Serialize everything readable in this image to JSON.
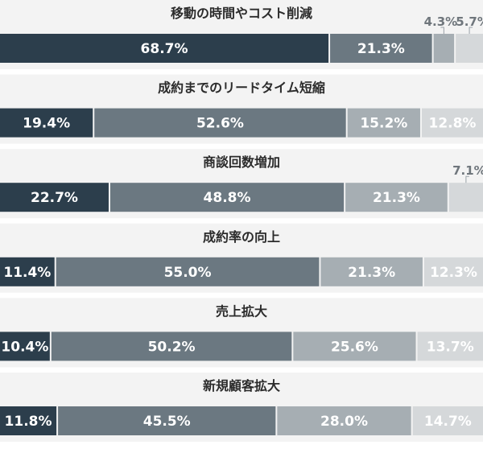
{
  "chart_data": {
    "type": "bar",
    "orientation": "horizontal-stacked-100",
    "colors": [
      "#2c3e4c",
      "#6b7881",
      "#a6aeb3",
      "#d5d8da"
    ],
    "charts": [
      {
        "title": "移動の時間やコスト削減",
        "values": [
          68.7,
          21.3,
          4.3,
          5.7
        ],
        "labels": [
          "68.7%",
          "21.3%",
          "4.3%",
          "5.7%"
        ]
      },
      {
        "title": "成約までのリードタイム短縮",
        "values": [
          19.4,
          52.6,
          15.2,
          12.8
        ],
        "labels": [
          "19.4%",
          "52.6%",
          "15.2%",
          "12.8%"
        ]
      },
      {
        "title": "商談回数増加",
        "values": [
          22.7,
          48.8,
          21.3,
          7.1
        ],
        "labels": [
          "22.7%",
          "48.8%",
          "21.3%",
          "7.1%"
        ]
      },
      {
        "title": "成約率の向上",
        "values": [
          11.4,
          55.0,
          21.3,
          12.3
        ],
        "labels": [
          "11.4%",
          "55.0%",
          "21.3%",
          "12.3%"
        ]
      },
      {
        "title": "売上拡大",
        "values": [
          10.4,
          50.2,
          25.6,
          13.7
        ],
        "labels": [
          "10.4%",
          "50.2%",
          "25.6%",
          "13.7%"
        ]
      },
      {
        "title": "新規顧客拡大",
        "values": [
          11.8,
          45.5,
          28.0,
          14.7
        ],
        "labels": [
          "11.8%",
          "45.5%",
          "28.0%",
          "14.7%"
        ]
      }
    ]
  }
}
